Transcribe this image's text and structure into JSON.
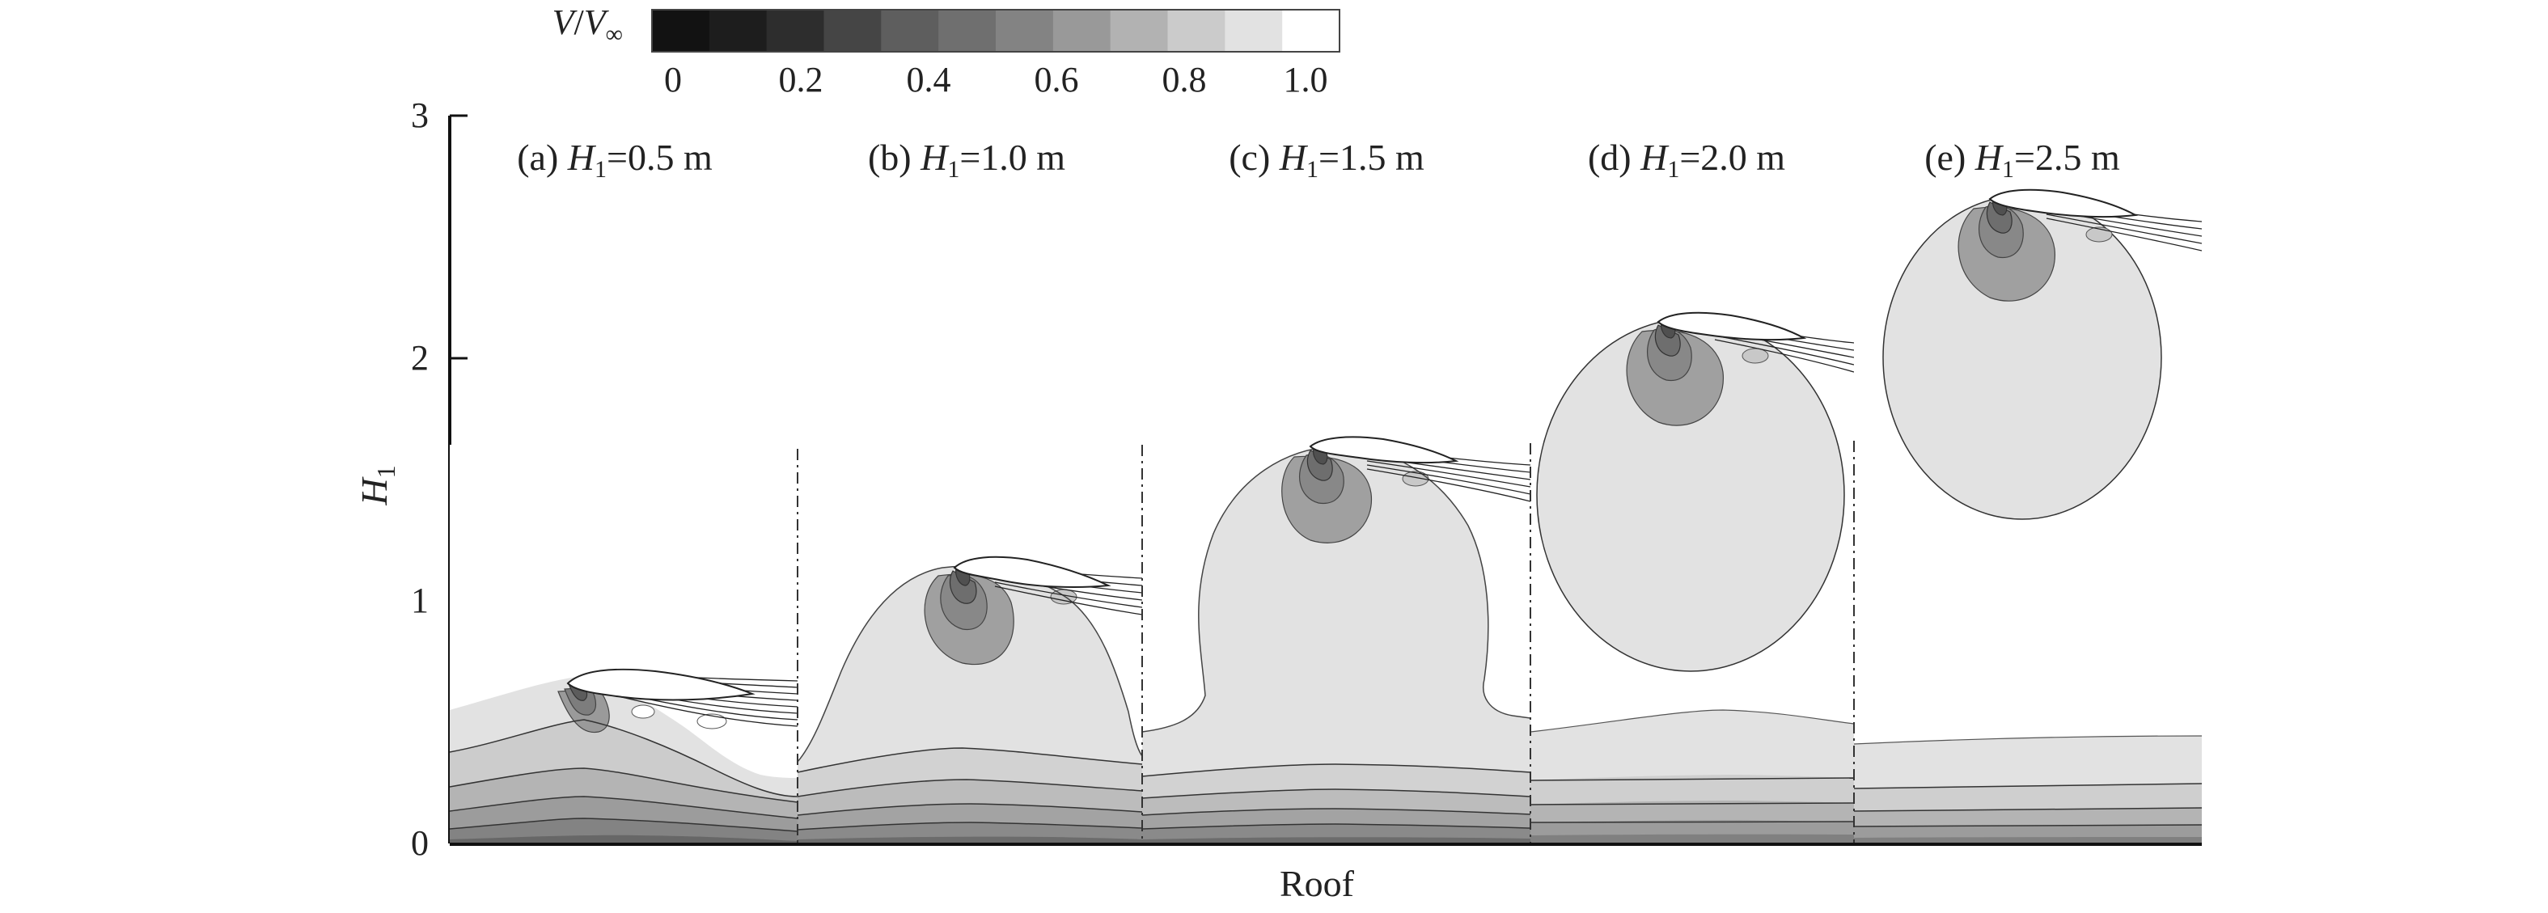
{
  "colorbar": {
    "symbol_main": "V",
    "symbol_slash": "/",
    "symbol_sub_base": "V",
    "symbol_sub_index": "∞",
    "ticks": [
      "0",
      "0.2",
      "0.4",
      "0.6",
      "0.8",
      "1.0"
    ],
    "colors": [
      "#121212",
      "#1d1d1d",
      "#2d2d2d",
      "#454545",
      "#5e5e5e",
      "#6f6f6f",
      "#838383",
      "#999999",
      "#b2b2b2",
      "#cbcbcb",
      "#e2e2e2",
      "#ffffff"
    ]
  },
  "axis": {
    "y_label_main": "H",
    "y_label_sub": "1",
    "y_ticks": [
      "0",
      "1",
      "2",
      "3"
    ],
    "x_label": "Roof"
  },
  "panels": [
    {
      "prefix": "(a) ",
      "var": "H",
      "sub": "1",
      "value": "=0.5 m"
    },
    {
      "prefix": "(b) ",
      "var": "H",
      "sub": "1",
      "value": "=1.0 m"
    },
    {
      "prefix": "(c) ",
      "var": "H",
      "sub": "1",
      "value": "=1.5 m"
    },
    {
      "prefix": "(d) ",
      "var": "H",
      "sub": "1",
      "value": "=2.0 m"
    },
    {
      "prefix": "(e) ",
      "var": "H",
      "sub": "1",
      "value": "=2.5 m"
    }
  ],
  "palette": {
    "freestream": "#e4e4e4",
    "band1": "#cfcfcf",
    "band2": "#b5b5b5",
    "band3": "#9c9c9c",
    "band4": "#828282",
    "band5": "#676767",
    "line": "#2a2a2a"
  }
}
